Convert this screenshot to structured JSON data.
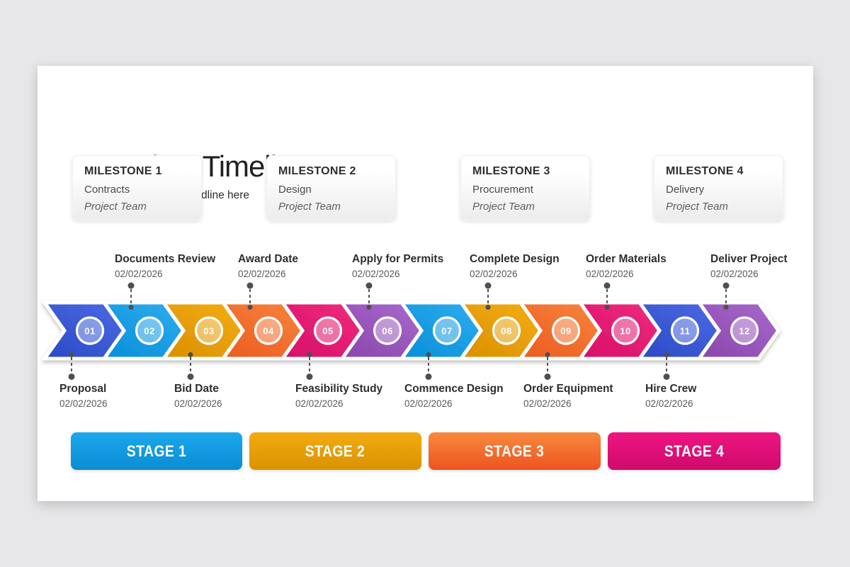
{
  "slide": {
    "title": "Project Timeline",
    "subtitle": "Enter your sub headline here"
  },
  "milestones": [
    {
      "title": "MILESTONE 1",
      "phase": "Contracts",
      "team": "Project Team"
    },
    {
      "title": "MILESTONE 2",
      "phase": "Design",
      "team": "Project Team"
    },
    {
      "title": "MILESTONE 3",
      "phase": "Procurement",
      "team": "Project Team"
    },
    {
      "title": "MILESTONE 4",
      "phase": "Delivery",
      "team": "Project Team"
    }
  ],
  "timeline": {
    "steps": [
      {
        "num": "01",
        "color": "royal"
      },
      {
        "num": "02",
        "color": "sky"
      },
      {
        "num": "03",
        "color": "amber"
      },
      {
        "num": "04",
        "color": "orange"
      },
      {
        "num": "05",
        "color": "magenta"
      },
      {
        "num": "06",
        "color": "purple"
      },
      {
        "num": "07",
        "color": "sky"
      },
      {
        "num": "08",
        "color": "amber"
      },
      {
        "num": "09",
        "color": "orange"
      },
      {
        "num": "10",
        "color": "magenta"
      },
      {
        "num": "11",
        "color": "royal"
      },
      {
        "num": "12",
        "color": "purple"
      }
    ],
    "palette": {
      "royal": [
        "#2b49c5",
        "#4a68e2"
      ],
      "sky": [
        "#078ed9",
        "#2cabec"
      ],
      "amber": [
        "#d98f00",
        "#f2ac12"
      ],
      "orange": [
        "#ed5a20",
        "#f6823a"
      ],
      "magenta": [
        "#d60e67",
        "#ee2a7d"
      ],
      "purple": [
        "#8a45ad",
        "#a767c9"
      ]
    },
    "connector_color": "#4f4f4f",
    "top_labels": [
      {
        "title": "Documents Review",
        "date": "02/02/2026",
        "step": 2
      },
      {
        "title": "Award Date",
        "date": "02/02/2026",
        "step": 4
      },
      {
        "title": "Apply for Permits",
        "date": "02/02/2026",
        "step": 6
      },
      {
        "title": "Complete Design",
        "date": "02/02/2026",
        "step": 8
      },
      {
        "title": "Order Materials",
        "date": "02/02/2026",
        "step": 10
      },
      {
        "title": "Deliver Project",
        "date": "02/02/2026",
        "step": 12
      }
    ],
    "bottom_labels": [
      {
        "title": "Proposal",
        "date": "02/02/2026",
        "step": 1
      },
      {
        "title": "Bid Date",
        "date": "02/02/2026",
        "step": 3
      },
      {
        "title": "Feasibility Study",
        "date": "02/02/2026",
        "step": 5
      },
      {
        "title": "Commence Design",
        "date": "02/02/2026",
        "step": 7
      },
      {
        "title": "Order Equipment",
        "date": "02/02/2026",
        "step": 9
      },
      {
        "title": "Hire Crew",
        "date": "02/02/2026",
        "step": 11
      }
    ]
  },
  "stages": [
    {
      "label": "STAGE 1",
      "gradient": [
        "#1ca9ec",
        "#0b8cd2"
      ]
    },
    {
      "label": "STAGE 2",
      "gradient": [
        "#f2ab10",
        "#da9202"
      ]
    },
    {
      "label": "STAGE 3",
      "gradient": [
        "#f78a3e",
        "#ee5320"
      ]
    },
    {
      "label": "STAGE 4",
      "gradient": [
        "#ee1581",
        "#cf0a6c"
      ]
    }
  ]
}
